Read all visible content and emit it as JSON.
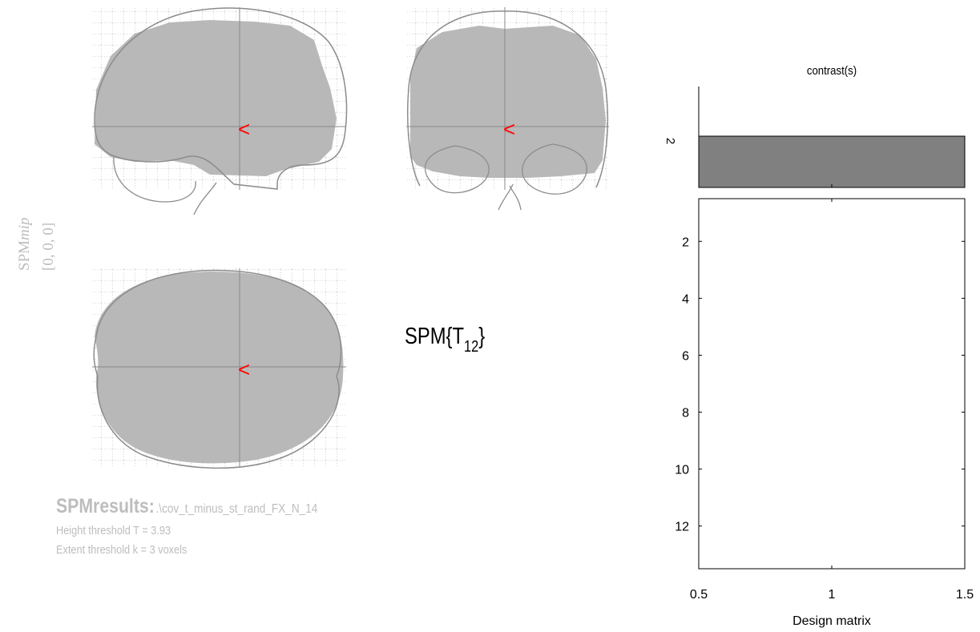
{
  "glass_brain": {
    "label_name": "SPMmip",
    "label_coords": "[0, 0, 0]",
    "marker_symbol": "<",
    "marker_color": "#ff0000",
    "blob_color": "#b8b8b8",
    "outline_color": "#8c8c8c",
    "grid_color": "#9a9a9a"
  },
  "statistic": {
    "prefix": "SPM{T",
    "df": "12",
    "suffix": "}"
  },
  "results": {
    "heading": "SPMresults:",
    "file": ".\\cov_t_minus_st_rand_FX_N_14",
    "height_threshold": "Height threshold  T = 3.93",
    "extent_threshold": "Extent threshold k = 3 voxels"
  },
  "chart_data": [
    {
      "type": "bar",
      "title": "contrast(s)",
      "ytick_labels": [
        "2"
      ],
      "bar_color": "#808080",
      "values": [
        1
      ]
    },
    {
      "type": "heatmap",
      "title": "",
      "xlabel": "Design matrix",
      "ylabel": "",
      "xlim": [
        0.5,
        1.5
      ],
      "ylim": [
        0.5,
        13.5
      ],
      "xticks": [
        0.5,
        1,
        1.5
      ],
      "xtick_labels": [
        "0.5",
        "1",
        "1.5"
      ],
      "yticks": [
        2,
        4,
        6,
        8,
        10,
        12
      ],
      "ytick_labels": [
        "2",
        "4",
        "6",
        "8",
        "10",
        "12"
      ],
      "rows": 13,
      "columns": 1,
      "values": [
        1,
        1,
        1,
        1,
        1,
        1,
        1,
        1,
        1,
        1,
        1,
        1,
        1
      ],
      "fill_color": "#ffffff"
    }
  ]
}
